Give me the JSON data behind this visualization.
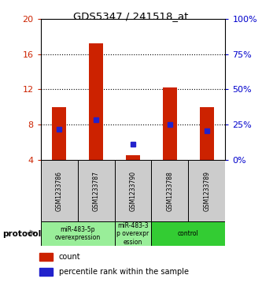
{
  "title": "GDS5347 / 241518_at",
  "samples": [
    "GSM1233786",
    "GSM1233787",
    "GSM1233790",
    "GSM1233788",
    "GSM1233789"
  ],
  "red_values": [
    10.0,
    17.2,
    4.6,
    12.2,
    10.0
  ],
  "blue_values": [
    7.5,
    8.6,
    5.8,
    8.0,
    7.3
  ],
  "y_min": 4,
  "y_max": 20,
  "y_ticks": [
    4,
    8,
    12,
    16,
    20
  ],
  "y_right_ticks": [
    0,
    25,
    50,
    75,
    100
  ],
  "grid_lines": [
    8,
    12,
    16
  ],
  "bar_color": "#cc2200",
  "point_color": "#2222cc",
  "bar_width": 0.38,
  "groups": [
    {
      "start": 0,
      "end": 1,
      "label": "miR-483-5p\noverexpression",
      "color": "#99ee99"
    },
    {
      "start": 2,
      "end": 2,
      "label": "miR-483-3\np overexpr\nession",
      "color": "#99ee99"
    },
    {
      "start": 3,
      "end": 4,
      "label": "control",
      "color": "#33cc33"
    }
  ],
  "legend_count_label": "count",
  "legend_pct_label": "percentile rank within the sample",
  "protocol_label": "protocol",
  "axis_color_left": "#cc2200",
  "axis_color_right": "#0000cc",
  "sample_bg": "#cccccc",
  "plot_bg": "#ffffff"
}
